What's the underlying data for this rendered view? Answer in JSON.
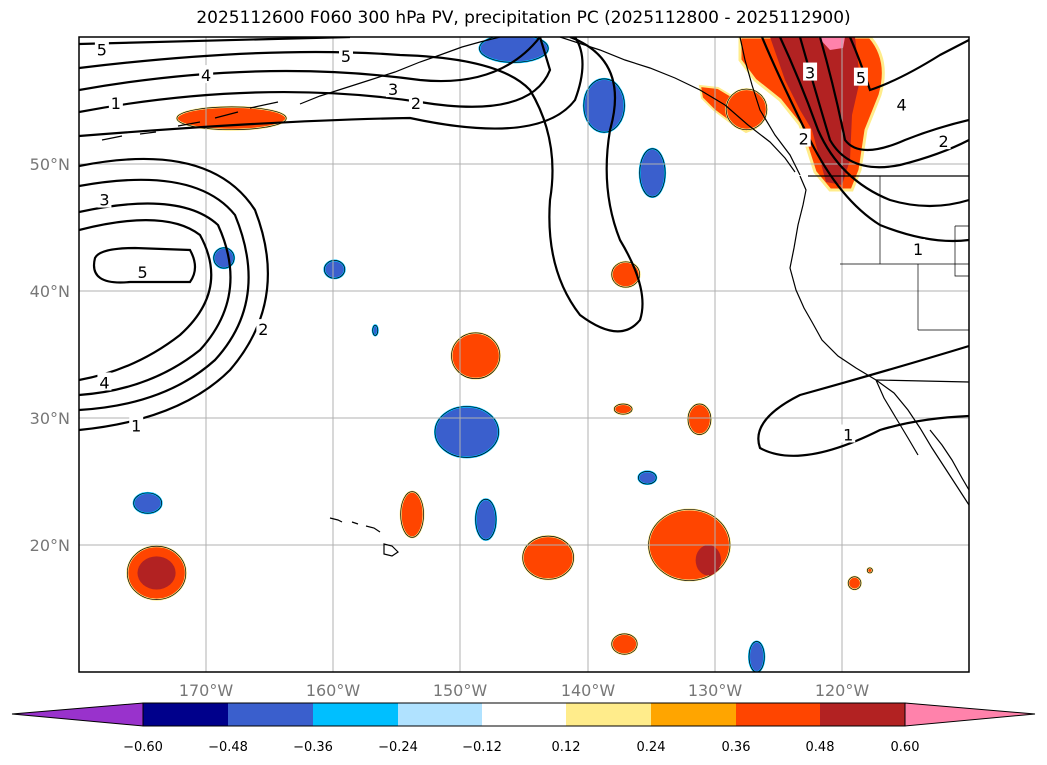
{
  "title": "2025112600 F060 300 hPa PV, precipitation PC (2025112800 - 2025112900)",
  "map": {
    "projection": "PlateCarree",
    "lon_range": [
      -180,
      -110
    ],
    "lat_range": [
      10,
      60
    ],
    "gridlines": true,
    "lon_ticks": [
      "170°W",
      "160°W",
      "150°W",
      "140°W",
      "130°W",
      "120°W"
    ],
    "lat_ticks": [
      "50°N",
      "40°N",
      "30°N",
      "20°N"
    ]
  },
  "pv_contours": {
    "color": "#000000",
    "labels": [
      {
        "text": "5",
        "lon": -178.2,
        "lat": 59.0
      },
      {
        "text": "4",
        "lon": -170.0,
        "lat": 57.0
      },
      {
        "text": "5",
        "lon": -159.0,
        "lat": 58.5
      },
      {
        "text": "3",
        "lon": -155.3,
        "lat": 55.9
      },
      {
        "text": "2",
        "lon": -153.5,
        "lat": 54.8
      },
      {
        "text": "1",
        "lon": -177.1,
        "lat": 54.8
      },
      {
        "text": "3",
        "lon": -178.0,
        "lat": 47.2
      },
      {
        "text": "5",
        "lon": -175.0,
        "lat": 41.5
      },
      {
        "text": "2",
        "lon": -165.5,
        "lat": 37.0
      },
      {
        "text": "4",
        "lon": -178.0,
        "lat": 32.8
      },
      {
        "text": "1",
        "lon": -175.5,
        "lat": 29.4
      },
      {
        "text": "3",
        "lon": -122.5,
        "lat": 57.2
      },
      {
        "text": "5",
        "lon": -118.5,
        "lat": 56.8
      },
      {
        "text": "2",
        "lon": -123.0,
        "lat": 52.0
      },
      {
        "text": "4",
        "lon": -115.3,
        "lat": 54.7
      },
      {
        "text": "2",
        "lon": -112.0,
        "lat": 51.8
      },
      {
        "text": "1",
        "lon": -114.0,
        "lat": 43.3
      },
      {
        "text": "1",
        "lon": -119.5,
        "lat": 28.7
      }
    ]
  },
  "colorbar": {
    "colors": [
      "#9932cc",
      "#00008b",
      "#3a5fcd",
      "#00bfff",
      "#b0e2ff",
      "#ffffff",
      "#ffec8b",
      "#ffa500",
      "#ff4500",
      "#b22222",
      "#ff82ab"
    ],
    "tick_labels": [
      "−0.60",
      "−0.48",
      "−0.36",
      "−0.24",
      "−0.12",
      "0.12",
      "0.24",
      "0.36",
      "0.48",
      "0.60"
    ]
  },
  "precip_blobs": [
    {
      "sign": "neg",
      "level": 2,
      "lon": -149.5,
      "lat": 28.9,
      "rlon": 2.5,
      "rlat": 2.0
    },
    {
      "sign": "neg",
      "level": 2,
      "lon": -148.0,
      "lat": 22.0,
      "rlon": 0.8,
      "rlat": 1.6
    },
    {
      "sign": "neg",
      "level": 2,
      "lon": -174.6,
      "lat": 23.3,
      "rlon": 1.1,
      "rlat": 0.8
    },
    {
      "sign": "neg",
      "level": 2,
      "lon": -168.6,
      "lat": 42.6,
      "rlon": 0.8,
      "rlat": 0.8
    },
    {
      "sign": "neg",
      "level": 2,
      "lon": -159.9,
      "lat": 41.7,
      "rlon": 0.8,
      "rlat": 0.7
    },
    {
      "sign": "neg",
      "level": 2,
      "lon": -156.7,
      "lat": 36.9,
      "rlon": 0.2,
      "rlat": 0.4
    },
    {
      "sign": "neg",
      "level": 2,
      "lon": -138.7,
      "lat": 54.6,
      "rlon": 1.6,
      "rlat": 2.1
    },
    {
      "sign": "neg",
      "level": 2,
      "lon": -134.9,
      "lat": 49.3,
      "rlon": 1.0,
      "rlat": 1.9
    },
    {
      "sign": "neg",
      "level": 2,
      "lon": -145.8,
      "lat": 59.1,
      "rlon": 2.7,
      "rlat": 1.1
    },
    {
      "sign": "neg",
      "level": 2,
      "lon": -135.3,
      "lat": 25.3,
      "rlon": 0.7,
      "rlat": 0.5
    },
    {
      "sign": "neg",
      "level": 2,
      "lon": -126.7,
      "lat": 11.2,
      "rlon": 0.6,
      "rlat": 1.2
    },
    {
      "sign": "pos",
      "level": 3,
      "lon": -168.0,
      "lat": 53.6,
      "rlon": 4.3,
      "rlat": 0.9
    },
    {
      "sign": "pos",
      "level": 3,
      "lon": -148.8,
      "lat": 34.9,
      "rlon": 1.9,
      "rlat": 1.8
    },
    {
      "sign": "pos",
      "level": 3,
      "lon": -153.8,
      "lat": 22.4,
      "rlon": 0.9,
      "rlat": 1.8
    },
    {
      "sign": "pos",
      "level": 3,
      "lon": -143.1,
      "lat": 19.0,
      "rlon": 2.0,
      "rlat": 1.7
    },
    {
      "sign": "pos",
      "level": 3,
      "lon": -132.0,
      "lat": 20.0,
      "rlon": 3.2,
      "rlat": 2.8
    },
    {
      "sign": "pos",
      "level": 4,
      "lon": -130.5,
      "lat": 18.8,
      "rlon": 1.0,
      "rlat": 1.2
    },
    {
      "sign": "pos",
      "level": 3,
      "lon": -173.9,
      "lat": 17.8,
      "rlon": 2.3,
      "rlat": 2.1
    },
    {
      "sign": "pos",
      "level": 4,
      "lon": -173.9,
      "lat": 17.8,
      "rlon": 1.5,
      "rlat": 1.3
    },
    {
      "sign": "pos",
      "level": 3,
      "lon": -137.1,
      "lat": 12.2,
      "rlon": 1.0,
      "rlat": 0.8
    },
    {
      "sign": "pos",
      "level": 3,
      "lon": -131.2,
      "lat": 29.9,
      "rlon": 0.9,
      "rlat": 1.2
    },
    {
      "sign": "pos",
      "level": 3,
      "lon": -137.2,
      "lat": 30.7,
      "rlon": 0.7,
      "rlat": 0.4
    },
    {
      "sign": "pos",
      "level": 3,
      "lon": -137.0,
      "lat": 41.3,
      "rlon": 1.1,
      "rlat": 1.0
    },
    {
      "sign": "pos",
      "level": 3,
      "lon": -127.5,
      "lat": 54.3,
      "rlon": 1.6,
      "rlat": 1.6
    },
    {
      "sign": "pos",
      "level": 3,
      "lon": -119.0,
      "lat": 17.0,
      "rlon": 0.5,
      "rlat": 0.5
    },
    {
      "sign": "pos",
      "level": 3,
      "lon": -117.8,
      "lat": 18.0,
      "rlon": 0.2,
      "rlat": 0.2
    }
  ]
}
